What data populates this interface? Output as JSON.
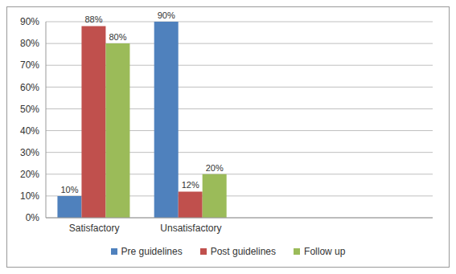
{
  "chart_data": {
    "type": "bar",
    "categories": [
      "Satisfactory",
      "Unsatisfactory",
      null,
      null
    ],
    "series": [
      {
        "name": "Pre guidelines",
        "color": "#4f81bd",
        "values": [
          10,
          90,
          null,
          null
        ],
        "value_labels": [
          "10%",
          "90%",
          null,
          null
        ]
      },
      {
        "name": "Post guidelines",
        "color": "#c0504d",
        "values": [
          88,
          12,
          null,
          null
        ],
        "value_labels": [
          "88%",
          "12%",
          null,
          null
        ]
      },
      {
        "name": "Follow up",
        "color": "#9bbb59",
        "values": [
          80,
          20,
          null,
          null
        ],
        "value_labels": [
          "80%",
          "20%",
          null,
          null
        ]
      }
    ],
    "ylim": [
      0,
      90
    ],
    "yticks": [
      {
        "value": 0,
        "label": "0%"
      },
      {
        "value": 10,
        "label": "10%"
      },
      {
        "value": 20,
        "label": "20%"
      },
      {
        "value": 30,
        "label": "30%"
      },
      {
        "value": 40,
        "label": "40%"
      },
      {
        "value": 50,
        "label": "50%"
      },
      {
        "value": 60,
        "label": "60%"
      },
      {
        "value": 70,
        "label": "70%"
      },
      {
        "value": 80,
        "label": "80%"
      },
      {
        "value": 90,
        "label": "90%"
      }
    ],
    "grid": true,
    "legend": "bottom",
    "data_labels": true
  }
}
